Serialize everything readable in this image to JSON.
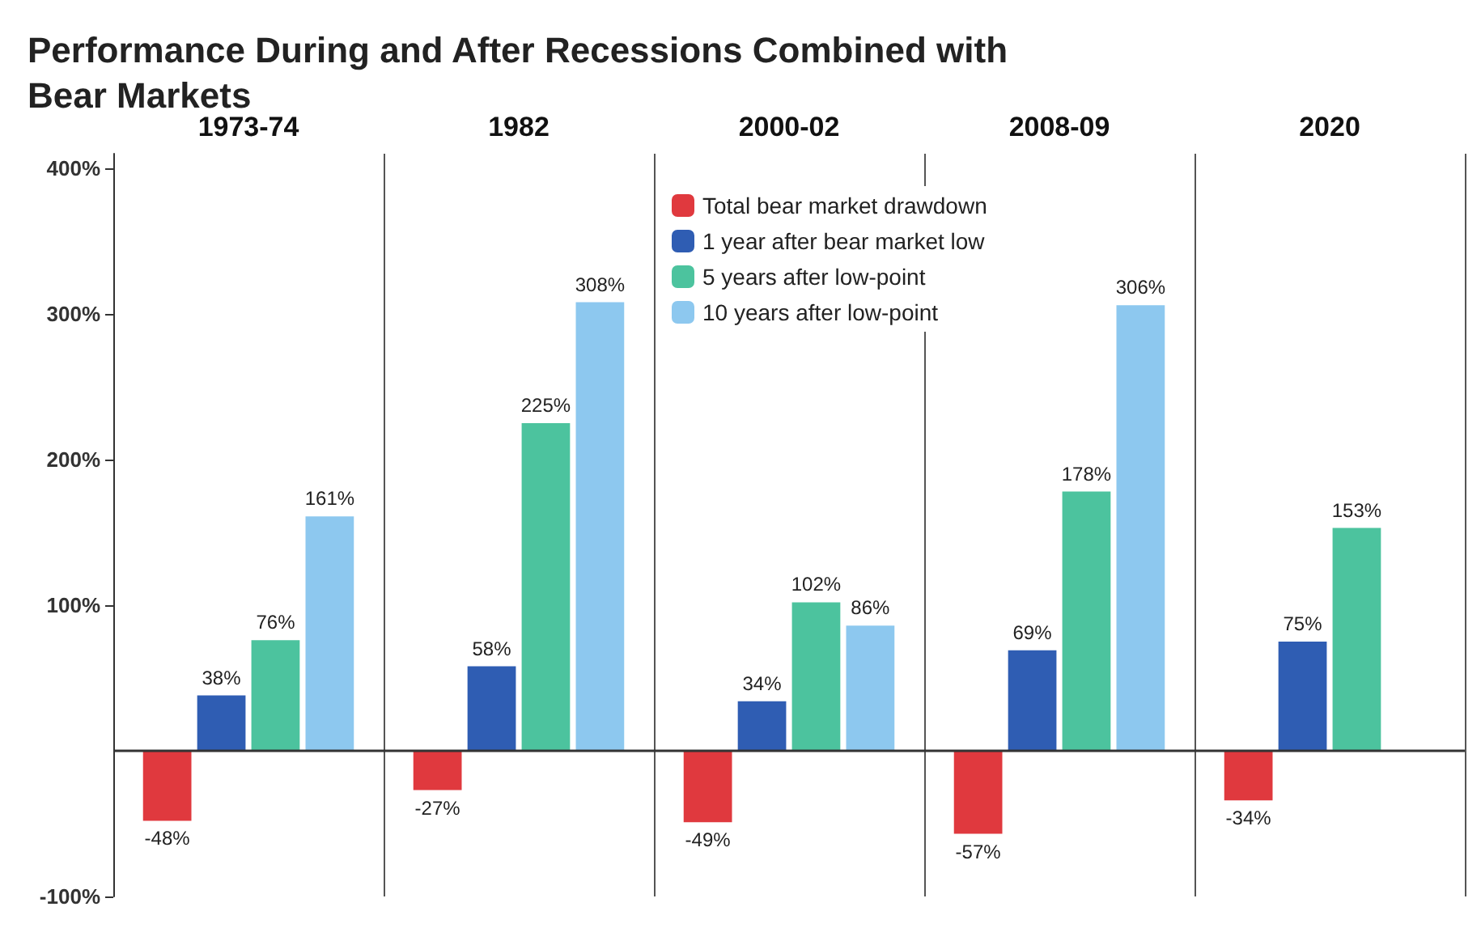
{
  "chart_data": {
    "type": "bar",
    "title": "Performance During and After Recessions Combined with Bear Markets",
    "categories": [
      "1973-74",
      "1982",
      "2000-02",
      "2008-09",
      "2020"
    ],
    "series": [
      {
        "name": "Total bear market drawdown",
        "color": "#e0393e",
        "values": [
          -48,
          -27,
          -49,
          -57,
          -34
        ],
        "value_labels": [
          "-48%",
          "-27%",
          "-49%",
          "-57%",
          "-34%"
        ]
      },
      {
        "name": "1 year after bear market low",
        "color": "#2f5db3",
        "values": [
          38,
          58,
          34,
          69,
          75
        ],
        "value_labels": [
          "38%",
          "58%",
          "34%",
          "69%",
          "75%"
        ]
      },
      {
        "name": "5 years after low-point",
        "color": "#4cc39e",
        "values": [
          76,
          225,
          102,
          178,
          153
        ],
        "value_labels": [
          "76%",
          "225%",
          "102%",
          "178%",
          "153%"
        ]
      },
      {
        "name": "10 years after low-point",
        "color": "#8dc8ef",
        "values": [
          161,
          308,
          86,
          306,
          null
        ],
        "value_labels": [
          "161%",
          "308%",
          "86%",
          "306%",
          null
        ]
      }
    ],
    "ylim": [
      -100,
      410
    ],
    "yticks": [
      {
        "value": -100,
        "label": "-100%"
      },
      {
        "value": 100,
        "label": "100%"
      },
      {
        "value": 200,
        "label": "200%"
      },
      {
        "value": 300,
        "label": "300%"
      },
      {
        "value": 400,
        "label": "400%"
      }
    ],
    "ref_lines": [
      {
        "axis": "y",
        "value": 0,
        "color": "#333333"
      }
    ],
    "grid": "x",
    "legend": "top"
  }
}
